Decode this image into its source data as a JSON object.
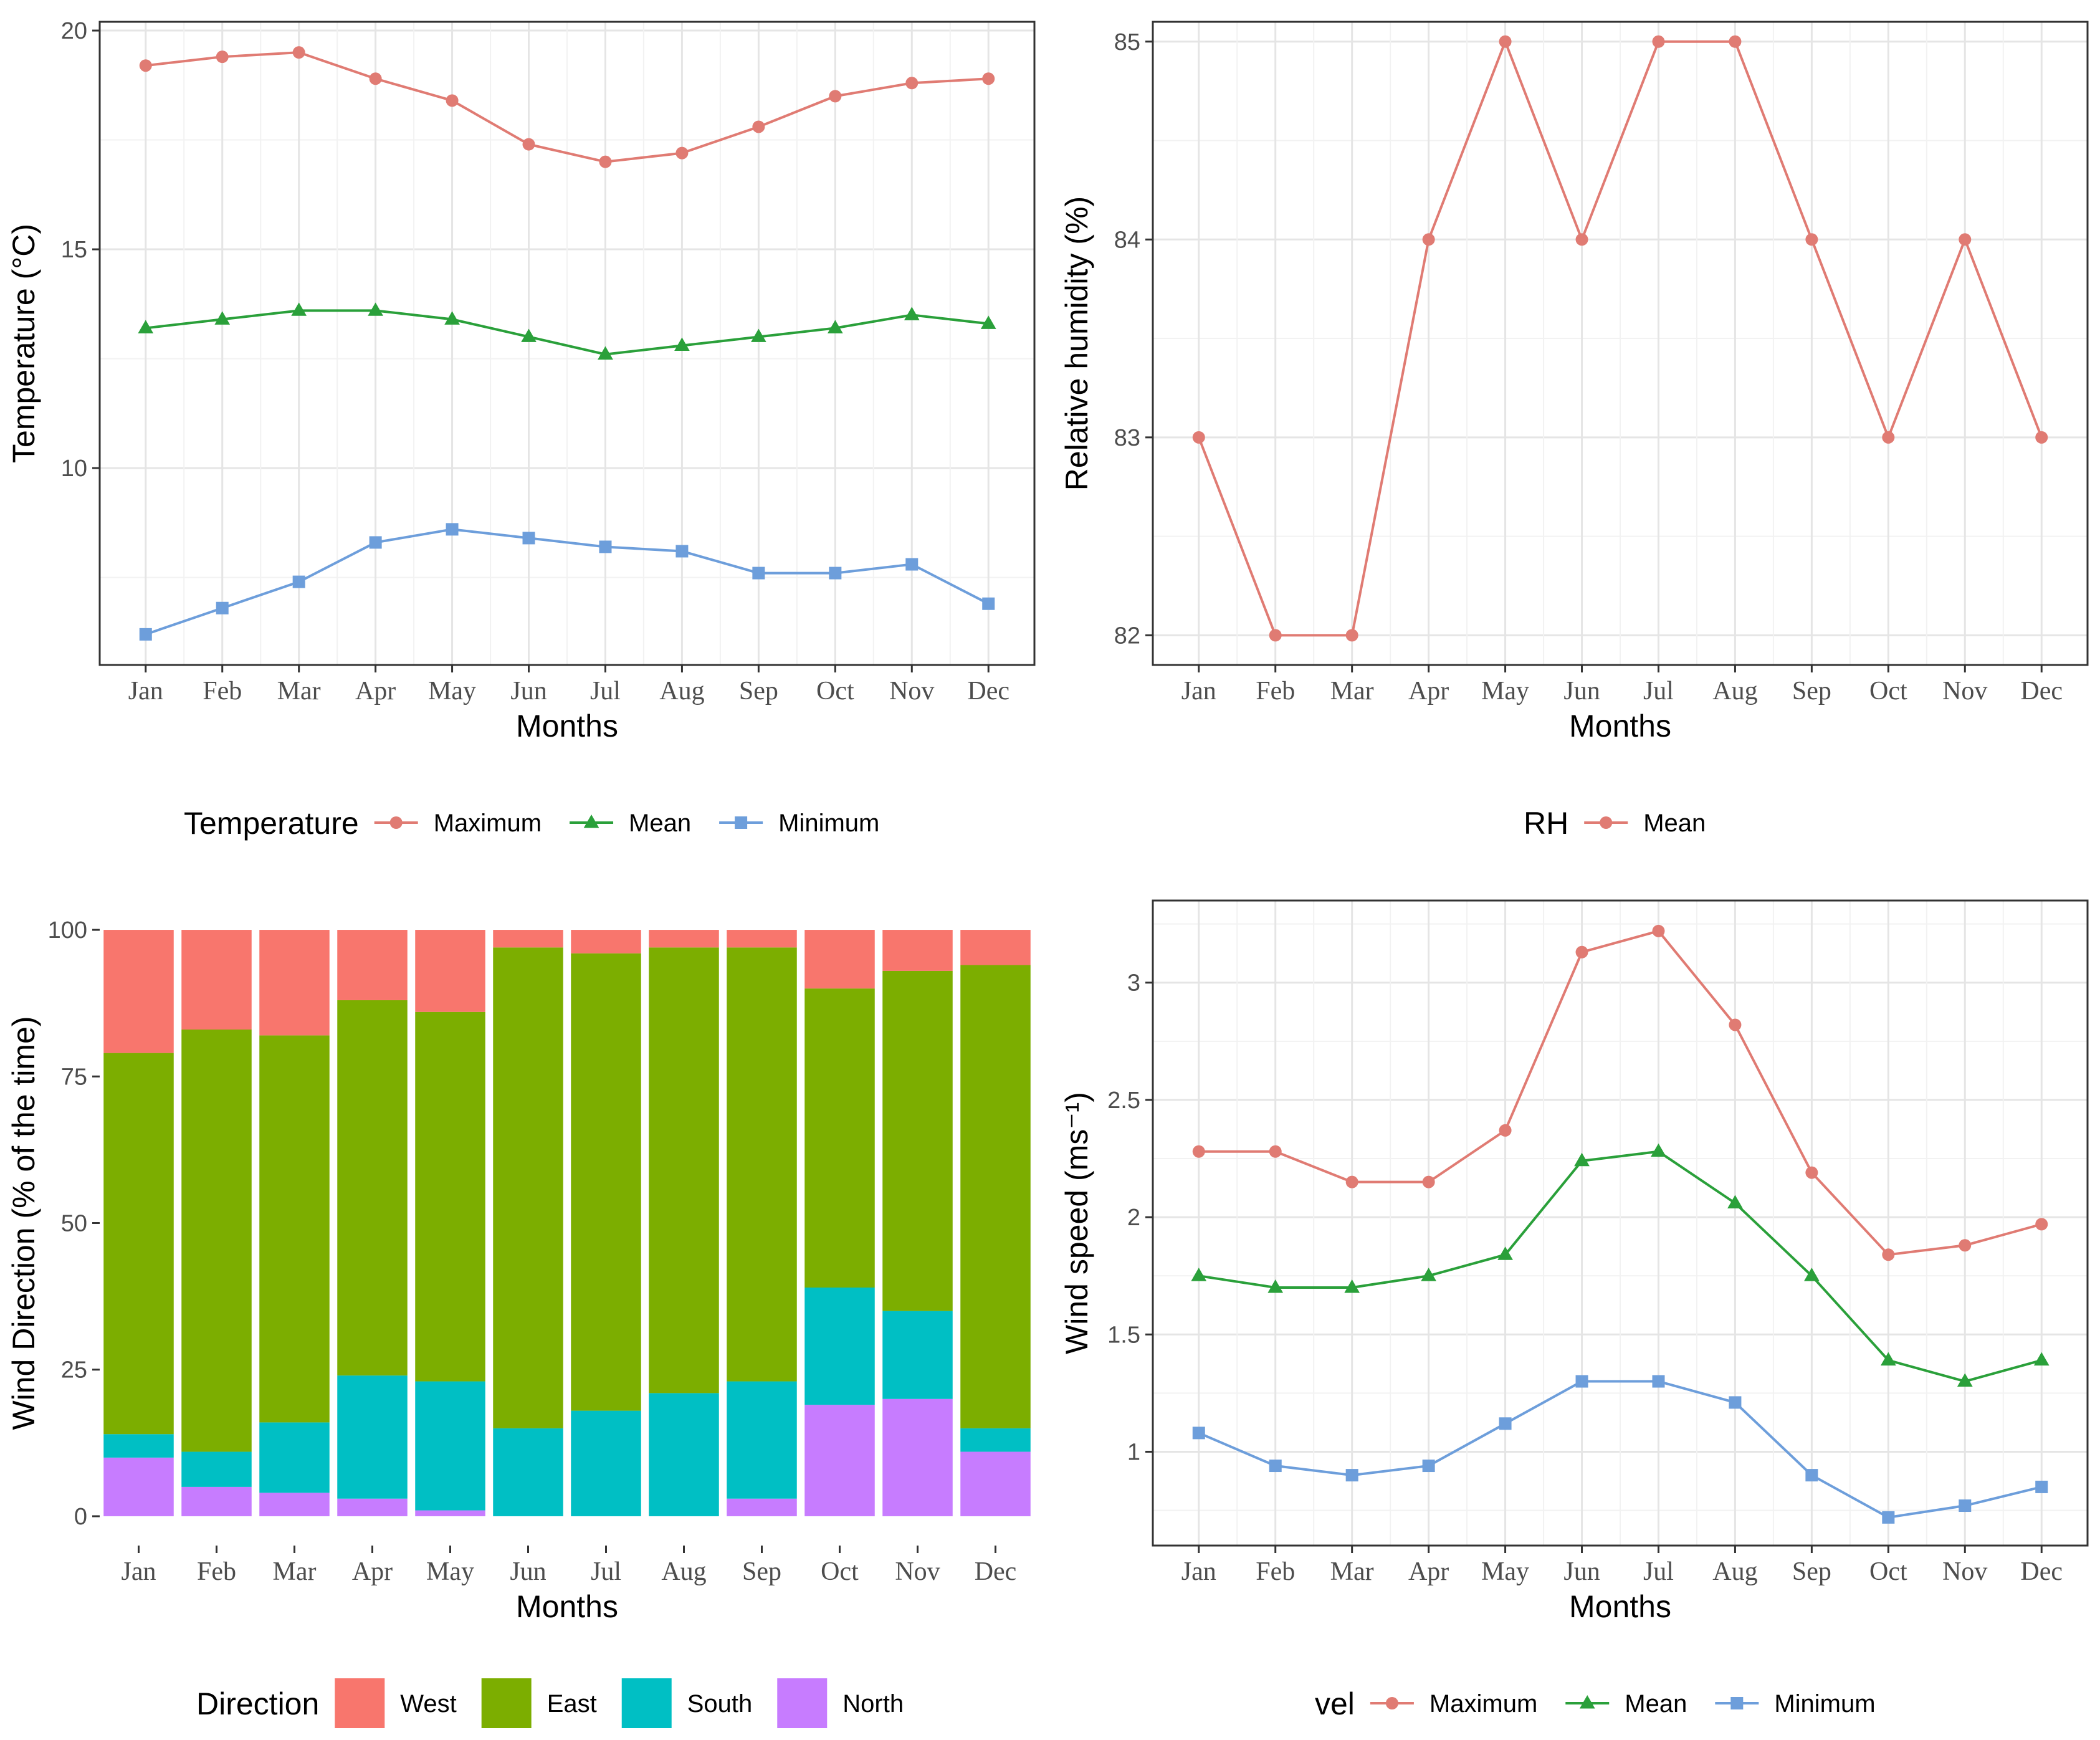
{
  "chart_data": [
    {
      "type": "line",
      "xlabel": "Months",
      "ylabel": "Temperature (°C)",
      "categories": [
        "Jan",
        "Feb",
        "Mar",
        "Apr",
        "May",
        "Jun",
        "Jul",
        "Aug",
        "Sep",
        "Oct",
        "Nov",
        "Dec"
      ],
      "ylim": [
        5.5,
        20.2
      ],
      "yticks": [
        10,
        15,
        20
      ],
      "legend_title": "Temperature",
      "legend_position": "bottom",
      "grid": true,
      "series": [
        {
          "name": "Maximum",
          "color": "#E07B73",
          "marker": "circle",
          "values": [
            19.2,
            19.4,
            19.5,
            18.9,
            18.4,
            17.4,
            17.0,
            17.2,
            17.8,
            18.5,
            18.8,
            18.9
          ]
        },
        {
          "name": "Mean",
          "color": "#2AA03A",
          "marker": "triangle",
          "values": [
            13.2,
            13.4,
            13.6,
            13.6,
            13.4,
            13.0,
            12.6,
            12.8,
            13.0,
            13.2,
            13.5,
            13.3
          ]
        },
        {
          "name": "Minimum",
          "color": "#6D9EDB",
          "marker": "square",
          "values": [
            6.2,
            6.8,
            7.4,
            8.3,
            8.6,
            8.4,
            8.2,
            8.1,
            7.6,
            7.6,
            7.8,
            6.9
          ]
        }
      ]
    },
    {
      "type": "line",
      "xlabel": "Months",
      "ylabel": "Relative humidity (%)",
      "categories": [
        "Jan",
        "Feb",
        "Mar",
        "Apr",
        "May",
        "Jun",
        "Jul",
        "Aug",
        "Sep",
        "Oct",
        "Nov",
        "Dec"
      ],
      "ylim": [
        81.85,
        85.1
      ],
      "yticks": [
        82,
        83,
        84,
        85
      ],
      "legend_title": "RH",
      "legend_position": "bottom",
      "grid": true,
      "series": [
        {
          "name": "Mean",
          "color": "#E07B73",
          "marker": "circle",
          "values": [
            83,
            82,
            82,
            84,
            85,
            84,
            85,
            85,
            84,
            83,
            84,
            83
          ]
        }
      ]
    },
    {
      "type": "bar",
      "stacked": true,
      "xlabel": "Months",
      "ylabel": "Wind Direction (% of the time)",
      "categories": [
        "Jan",
        "Feb",
        "Mar",
        "Apr",
        "May",
        "Jun",
        "Jul",
        "Aug",
        "Sep",
        "Oct",
        "Nov",
        "Dec"
      ],
      "ylim": [
        -5,
        105
      ],
      "yticks": [
        0,
        25,
        50,
        75,
        100
      ],
      "legend_title": "Direction",
      "legend_position": "bottom",
      "stack_order": [
        "North",
        "South",
        "East",
        "West"
      ],
      "series": [
        {
          "name": "West",
          "color": "#F8766D",
          "values": [
            21,
            17,
            18,
            12,
            14,
            3,
            4,
            3,
            3,
            10,
            7,
            6
          ]
        },
        {
          "name": "East",
          "color": "#7CAE00",
          "values": [
            65,
            72,
            66,
            64,
            63,
            82,
            78,
            76,
            74,
            51,
            58,
            79
          ]
        },
        {
          "name": "South",
          "color": "#00BFC4",
          "values": [
            4,
            6,
            12,
            21,
            22,
            15,
            18,
            21,
            20,
            20,
            15,
            4
          ]
        },
        {
          "name": "North",
          "color": "#C77CFF",
          "values": [
            10,
            5,
            4,
            3,
            1,
            0,
            0,
            0,
            3,
            19,
            20,
            11
          ]
        }
      ]
    },
    {
      "type": "line",
      "xlabel": "Months",
      "ylabel": "Wind speed (ms⁻¹)",
      "categories": [
        "Jan",
        "Feb",
        "Mar",
        "Apr",
        "May",
        "Jun",
        "Jul",
        "Aug",
        "Sep",
        "Oct",
        "Nov",
        "Dec"
      ],
      "ylim": [
        0.6,
        3.35
      ],
      "yticks": [
        1.0,
        1.5,
        2.0,
        2.5,
        3.0
      ],
      "legend_title": "vel",
      "legend_position": "bottom",
      "grid": true,
      "series": [
        {
          "name": "Maximum",
          "color": "#E07B73",
          "marker": "circle",
          "values": [
            2.28,
            2.28,
            2.15,
            2.15,
            2.37,
            3.13,
            3.22,
            2.82,
            2.19,
            1.84,
            1.88,
            1.97
          ]
        },
        {
          "name": "Mean",
          "color": "#2AA03A",
          "marker": "triangle",
          "values": [
            1.75,
            1.7,
            1.7,
            1.75,
            1.84,
            2.24,
            2.28,
            2.06,
            1.75,
            1.39,
            1.3,
            1.39
          ]
        },
        {
          "name": "Minimum",
          "color": "#6D9EDB",
          "marker": "square",
          "values": [
            1.08,
            0.94,
            0.9,
            0.94,
            1.12,
            1.3,
            1.3,
            1.21,
            0.9,
            0.72,
            0.77,
            0.85
          ]
        }
      ]
    }
  ]
}
